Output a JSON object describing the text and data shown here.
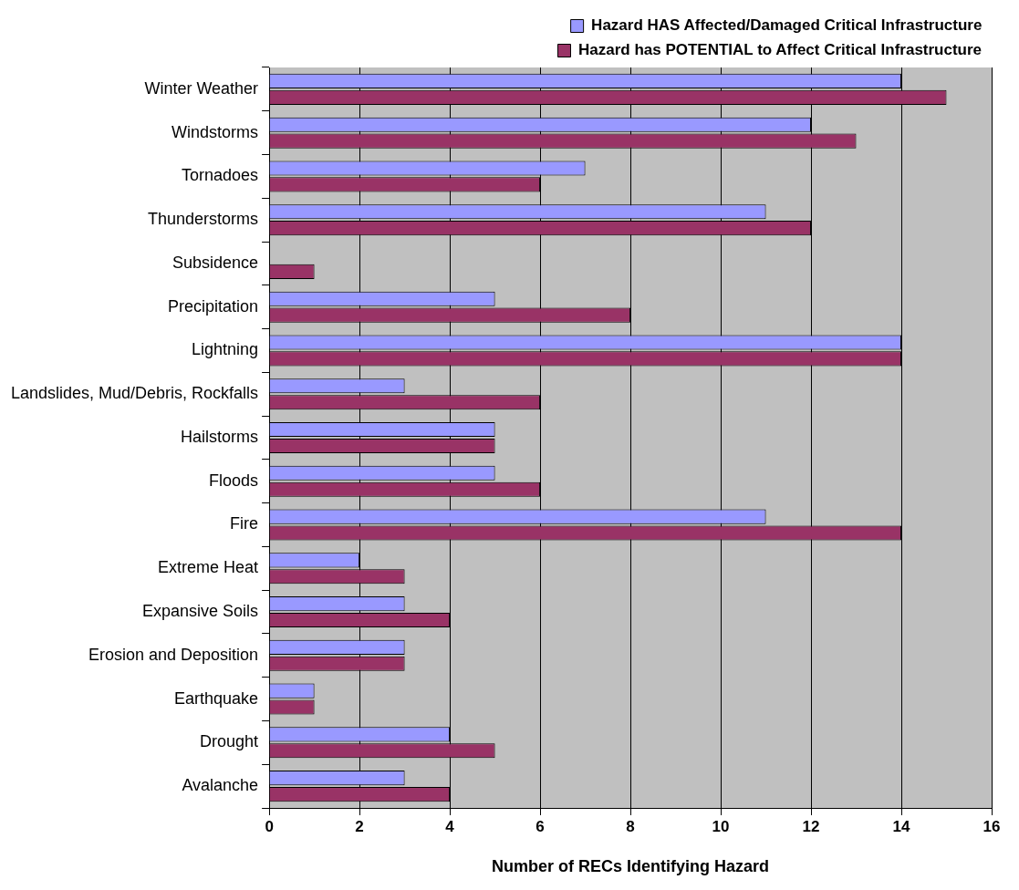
{
  "chart_data": {
    "type": "bar",
    "orientation": "horizontal",
    "xlabel": "Number of RECs Identifying Hazard",
    "categories": [
      "Winter Weather",
      "Windstorms",
      "Tornadoes",
      "Thunderstorms",
      "Subsidence",
      "Precipitation",
      "Lightning",
      "Landslides, Mud/Debris, Rockfalls",
      "Hailstorms",
      "Floods",
      "Fire",
      "Extreme Heat",
      "Expansive Soils",
      "Erosion and Deposition",
      "Earthquake",
      "Drought",
      "Avalanche"
    ],
    "series": [
      {
        "name": "Hazard HAS Affected/Damaged Critical Infrastructure",
        "color": "#9999ff",
        "values": [
          14,
          12,
          7,
          11,
          0,
          5,
          14,
          3,
          5,
          5,
          11,
          2,
          3,
          3,
          1,
          4,
          3
        ]
      },
      {
        "name": "Hazard has POTENTIAL to Affect Critical Infrastructure",
        "color": "#993366",
        "values": [
          15,
          13,
          6,
          12,
          1,
          8,
          14,
          6,
          5,
          6,
          14,
          3,
          4,
          3,
          1,
          5,
          4
        ]
      }
    ],
    "xlim": [
      0,
      16
    ],
    "xticks": [
      0,
      2,
      4,
      6,
      8,
      10,
      12,
      14,
      16
    ],
    "grid": "x",
    "legend": "top right"
  }
}
